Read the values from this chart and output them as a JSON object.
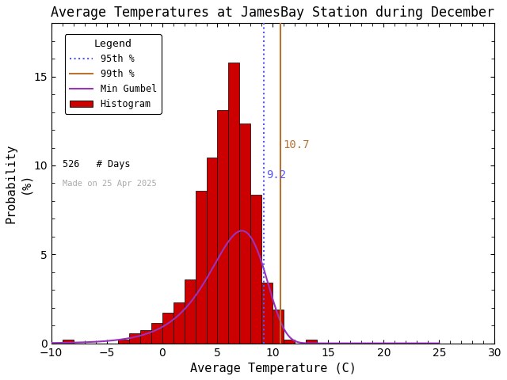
{
  "title": "Average Temperatures at JamesBay Station during December",
  "xlabel": "Average Temperature (C)",
  "ylabel": "Probability\n(%)",
  "xlim": [
    -10,
    30
  ],
  "ylim": [
    0,
    18
  ],
  "xticks": [
    -10,
    -5,
    0,
    5,
    10,
    15,
    20,
    25,
    30
  ],
  "yticks": [
    0,
    5,
    10,
    15
  ],
  "bin_edges": [
    -9,
    -8,
    -7,
    -6,
    -5,
    -4,
    -3,
    -2,
    -1,
    0,
    1,
    2,
    3,
    4,
    5,
    6,
    7,
    8,
    9,
    10,
    11,
    12,
    13,
    14,
    15
  ],
  "bin_heights": [
    0.19,
    0.0,
    0.0,
    0.0,
    0.0,
    0.19,
    0.57,
    0.76,
    1.14,
    1.71,
    2.28,
    3.61,
    8.56,
    10.46,
    13.12,
    15.78,
    12.36,
    8.37,
    3.42,
    1.9,
    0.19,
    0.0,
    0.19,
    0.0,
    0.0
  ],
  "bar_color": "#cc0000",
  "bar_edgecolor": "#000000",
  "gumbel_mu": 7.2,
  "gumbel_beta": 2.5,
  "gumbel_amplitude": 17.2,
  "p95_x": 9.2,
  "p99_x": 10.7,
  "p95_color": "#5555ff",
  "p99_color": "#b87333",
  "p95_label": "9.2",
  "p99_label": "10.7",
  "n_days": 526,
  "made_on": "Made on 25 Apr 2025",
  "legend_title": "Legend",
  "background_color": "#ffffff",
  "title_fontsize": 12,
  "axis_fontsize": 11,
  "tick_fontsize": 10,
  "gumbel_color": "#9933bb"
}
